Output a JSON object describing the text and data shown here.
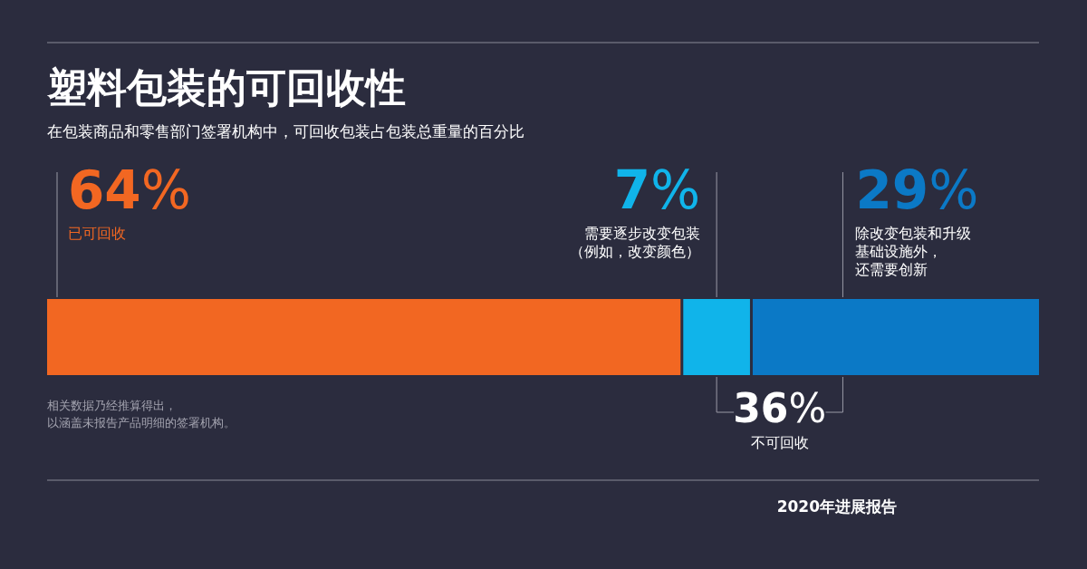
{
  "chart_data": {
    "type": "bar",
    "orientation": "horizontal",
    "stacked": true,
    "title": "塑料包装的可回收性",
    "subtitle": "在包装商品和零售部门签署机构中，可回收包装占包装总重量的百分比",
    "categories": [
      null
    ],
    "series": [
      {
        "name": "已可回收",
        "color": "#f26722",
        "values": [
          64
        ],
        "value_labels": [
          "64%"
        ]
      },
      {
        "name": "需要逐步改变包装（例如，改变颜色）",
        "color": "#10b4ea",
        "values": [
          7
        ],
        "value_labels": [
          "7%"
        ]
      },
      {
        "name": "除改变包装和升级基础设施外，还需要创新",
        "color": "#0b79c6",
        "values": [
          29
        ],
        "value_labels": [
          "29%"
        ]
      }
    ],
    "annotations": [
      "36%",
      "不可回收",
      "相关数据乃经推算得出，以涵盖未报告产品明细的签署机构。",
      "2020年进展报告"
    ],
    "legend": false
  }
}
